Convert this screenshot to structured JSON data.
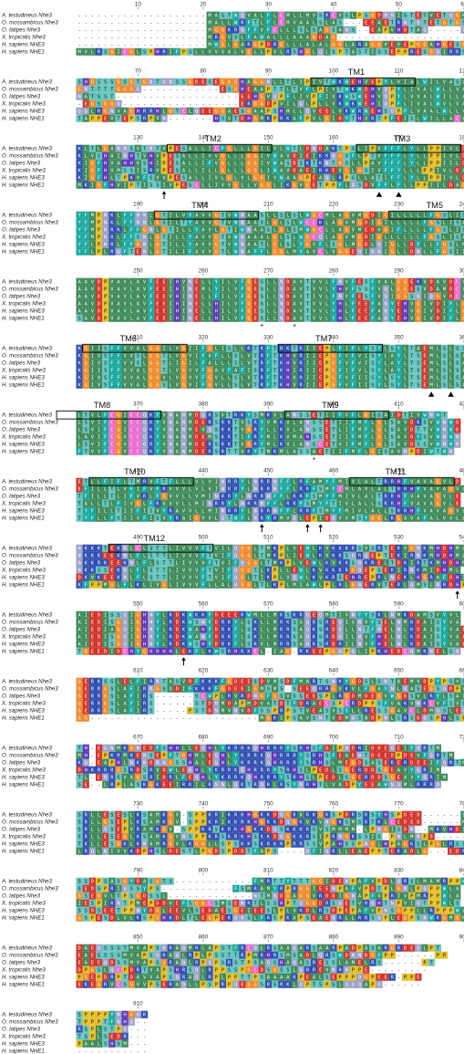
{
  "sequences": [
    "A. testudineus Nhe3",
    "O. mossambicus Nhe3",
    "O. latipes Nhe3",
    "X. tropicalis Nhe3",
    "H. sapiens NHE3",
    "H. sapiens NHE1"
  ],
  "blocks": [
    {
      "start": 1,
      "ticks": [
        10,
        20,
        30,
        40,
        50,
        60
      ],
      "rows": [
        "--------------------MASTWQVALFLCMLLMVSRCVSLPSGDNNISTETVETQGMRSS",
        "--------------------MALLWRFTLFLCMVAALSLAS---EEAETRNTQTETGTGSS",
        "--------------------MGGKRQFFVFCLLLSLSAGSANS--EAPVHDTAQ-----QS",
        "--------------------MRGVSLFAWALLLAAAGDAG---------------------",
        "--------------------MWGLGARGPDRGLLLALALGGLARAGGVEVEPGGAHGESGG",
        "MVLRSGICGLSPHRIFPSLLVVVALVGLLPVLRSHGLQLSPTASTISSEPPRESGQIRRSGDV"
      ]
    },
    {
      "start": 61,
      "ticks": [
        70,
        80,
        90,
        100,
        110,
        120
      ],
      "rows": [
        "SHGSSSGSGTGNTQNSSGDESEGGGHAGGNLLTLIPIVTWKWEHVEPYLVIALWILVASL",
        "GNTTTTGGGQ------------ESGHEAAPTTLTVFLPIVTWKWDHVQPYLIVALWLLVASL",
        "NATSST-------------------EEHGVQPFLIVPFIVKWSWEHVQPYLVVALWILLASL",
        "-EGSGGQ------------------ERGGDPVILQLPLLVKWKWEHIQPFLIVALWVLVASL",
        "QQLRGNVAGHRRHLGTCLQEEGGAESGAAPSHMLLQVEELVKWRWEHSQPFLVAALWLLVASL",
        "TAPPEVTEPSRPVN-------HSVTDHGMKPRKAFPVLGIDYTHVRTPFEISLWILLACL"
      ]
    },
    {
      "start": 121,
      "ticks": [
        130,
        140,
        150,
        160,
        170,
        180
      ],
      "rows": [
        "KLTLGANNSVTNTVPESALLICFGLLLGILVLWTLDNDAKTPSLIPVFFFLYLLPPIVLDAG",
        "KLVSHAINHTVHVPESALLIVVGLLLGGIVWAVDIEIKKNGSFLPTVFFFLYLLPPIVLDAG",
        "KIGFHVAHHVSHIPESALLIFVGLLLGGIVWASDSKTKNTGSLLPAVFFFLYLLPPIILDAG",
        "KIGFHVMSSISRVPESALLILLGLLLGGLIWAVDAEIRKEVGLGSIVFFYLLLPPIVLDAG",
        "KIGFHLTPKVFSVVPESALLIVLGLVLGGIVWAAGPEAQLRPSLLATIFFLYLLPPIVLDAG",
        "MKIGFHVIPTISSIVPESCLLIVVGLLVGGLIKGVGETPPFLQSDVFFLFLLPPIILDAG"
      ]
    },
    {
      "start": 181,
      "ticks": [
        190,
        200,
        210,
        220,
        230,
        240
      ],
      "rows": [
        "YFMPNKLFFNNLGTILVYAVVGTVWNAASLLSLSLWGCMLAGVMGDIGILLLLLFGSLISAV",
        "YFMPNKLFFNNLGSILTYAVVGTVWNAASLGLSLWCCKLAGVMGDIGILLLLLFGSLISAV",
        "YFMPNRKLFFGNLGTILLYAVLGTIWNAASLGLSMWGCLLAGVMEDVGIFLLLLFGSLISAV",
        "YFMPNRLFFSNLGTILLYAVVGTVWNAAALGLSLWGCQLAGVMGDIGLLLLLLFGSLISAV",
        "YFLPNRLFFGNLGTILLYAVVGTVWNAATLGLSLYGVFLSGLMGDLQIGLLDFLLFGSLMAAV",
        "YFLPLRQFTENLGTILIFAVVGTLWNAFFLGGLMYAVCLVGGEQINNIGLLDNLLFGSIISAV"
      ]
    },
    {
      "start": 241,
      "ticks": [
        250,
        260,
        270,
        280,
        290,
        300
      ],
      "rows": [
        "AAVDPVAVLAVFEEIHVNELLYILVFGESLLNDAVTVVLFNVFESFVALGGEKVDAVDCV",
        "AAVDPVAVLAVFEEIHINEMLYILVFGESLLNDAVTVVLYHVFSSFVQLGGESVDAMDCV",
        "AAVDPVAVLAVFEEVHINELLFILVFGESLLNDAVTIVLFNVFESFVQIGGSNIQGVDCV",
        "AAVDPVAVLAVFEEIHINELLHILVFGESLLNDAVTVVLYHLFEEFANYEHVGIVDIFLGF",
        "AAVDPVAVLAVFEEIHINELLHILVFGESLLNDAVTVVLYHLFEEFANYEHVGIVDIFLGF",
        "SAVDPVAVLAVFEEIHINELLHILVFGESLLNDAVTVVLYHLFEEFANYEHVGIVDIFLGF"
      ]
    },
    {
      "start": 301,
      "ticks": [
        310,
        320,
        330,
        340,
        350,
        360
      ],
      "rows": [
        "KGIISFFVVALGGILVGIIFGLISLLRTKFTRKTRIIEPLFIFLYSYLSYLTAEMLSLSSI",
        "KGIVSFFVVSLGGTLVGVIFAFLLSLVTRFTKHVRIIEPGFVFVISYLAYLTSEMLSLSAI",
        "KGIVSFFVVSLGGTLIGILFALLLSLVTRFTKHVRIIEPGFVFVISYLAYLTSEMLSLSAI",
        "KGIISFFVVALGGTLVGVVFGAVFAFISRFTKHIRIIEPGFIFVLSYLAYLTSEMLSLSAI",
        "KGIVSFFVVALGGVLVGVVFGVLLSLVTRFTKHVRIIEPGFVFIISYLSYLTSEMLSLSAI",
        "KGIVSFFVVALGGSLVGVIFGVLLSLVTRFTKHVRIIEPGFVFIISYLSYLTSEMLSLSAI"
      ]
    },
    {
      "start": 361,
      "ticks": [
        370,
        380,
        390,
        400,
        410,
        420
      ],
      "rows": [
        "LTVLFCGICCQKYVNANMDQRSVTRKYSMKVLANSSETIIFVFLGISAIDTIVWNWT",
        "LSVIFCGVCCQKYVNANMDERSRKTVSRYVMKVLANSSETIIFMFLGLSAVDRSVWNWD",
        "LSVIFCGICCQKYVNANMEVQSKKTVGRYLLKVLANSSETLIFMFLGLSAVDTTVWNWD",
        "LAVIFCGVCCQKYVNANMDEMSKKTIFRYMLKVMAHSSETIIFMFLGLSAVDYSVWNWN",
        "LSVIFCGVCCQRYVNANMDERSRKTVGRYMLKVLANSCETVIFMFLGLSAVDSSVWNWN",
        "FTVVFCGVCCQKYVNANMDEKSRTTVKYTMKMLASSAETIIFMFLGISAVNPDIWTWN"
      ]
    },
    {
      "start": 421,
      "ticks": [
        430,
        440,
        450,
        460,
        470,
        480
      ],
      "rows": [
        "ETLLFIFLTMRVFTFLLLVLVINRRYLNRRNFFLRFAMYFMIVLALTRRHFVAVAGVLD",
        "EFILLTLVFIFVFRVVVLVLVINRRYLNRRNFFLRRFSMYCMLAVLALTRRHFVAVAGVLE",
        "TFILLTLIFVRLFGVVLLVMINRRYLNRRNFFLRRFSMYFMIVLALTRRHFVAVAGVLE",
        "TALLTLFIVGLFRVVVLLMINRRYLNRRNFFLRRFSMYFTIVLALLSRRHFVAVAGVLE",
        "TYFILLTIIFISVYRAVVLLMINRRYLNRRNFFLRRFSMYFMIVLALLSRRHFVAVAGVLD",
        "TYFLLFSIIVFISVYRAIGVVLQTWFLNRYRMVQLEPIDQVVMSYGGLRGAVAFALVVLLD"
      ]
    },
    {
      "start": 481,
      "ticks": [
        490,
        500,
        510,
        520,
        530,
        540
      ],
      "rows": [
        "NKKKTEKNLCLSTTLIVVVFTVILQGGLTMKPLVEWLKVKKKRSVSRTEKVGNKMHDHMLI",
        "NKKKEEKNLFLSTTLIVVVFTVIFQGGLTMKPLIEWLKVKKSQRQEPTEKIRNKMHDHML",
        "NKKRKEEKNLFLSTTLIVVVFTVIFQGGLTMKPLVEWLKVKKSQKRELTDKIRTKMHDHML",
        "NKKSSEKNLFLSTTLIVVVFTVIFQGGTLKPLLEWLKVKKKRGQEPSEKIRNKMIDHML",
        "DKVKEEKNLFLSTTLIVVVFTVIFQGLTIKPLVQWLKVKRSEHREPRLNEKLHGRAFDHILL",
        "KFPPMGLFLKLIVGLIVVVFLLALQGGLTLKPLMIAWLPLRLGNERVTERLQMSLNRDHPH"
      ]
    },
    {
      "start": 541,
      "ticks": [
        550,
        560,
        570,
        580,
        590,
        600
      ],
      "rows": [
        "AIEDISSQIGHNYLRDKWKKFDEEEKWMLLMKSKRQEQMTIVNFYSKLNMKDAMSVYVL",
        "AIEDISGQIGHNYLRDKWSNFDRKYLSKLLMRKSAQRSREQIVNVFSELNMKDAISYVA",
        "AIEDIAGQIGHNYLRDKWAHFDRKFLSKLLMRRSAQKSRDQLLNTFNELNLKDAISYVAE",
        "AIEDISGQIGHNYLRDKWANFDRKFLSKLLMRRSAQKSRDQILNVFHELNLKDAISYVAE",
        "AIEDISGQIGHNYLRDKWSHFDRKFLSRVLMRRSAQKSRDRILNVFHELNLKDAISYVAE",
        "TGEEDIDCHYGHHHHLEKFLKWSRHKKCL-IAG-RKEEPGQPQLIPKHEDCNMKNELSN"
      ]
    },
    {
      "start": 601,
      "ticks": [
        610,
        620,
        630,
        640,
        650,
        660
      ],
      "rows": [
        "GERKSSLELFIRNTASVDFKKKFGDEESDVMSDFMARTSNKYGDSLSNTAEMVDPYPSVSLE",
        "GERRGSLAFIRNGSVDIFKKKFGDEEIGMSMS-SEEQRRGVKVLFGAYNLQASEGSQDPVEG",
        "GERRGSLAFIRS------SCWPLRVRDNGFGSVSSEESPLRGDMDEGVWGDSVLRYLSAIDS",
        "GERRGSLAFIRS------STDNMDAPMDVATDTFDRAECSPCRDPPSFVAKVNKCVFSVSLE",
        "GERRGSLAFIRS-----PSTDNMVNVDFSSPRPSTVEASVSYLLRESSGAVCLDMQSLEQ",
        "GG--------------------------MGKIPSAVSNTVDMQSADPNLSRSDQSPHLSPL"
      ]
    },
    {
      "start": 661,
      "ticks": [
        670,
        680,
        690,
        700,
        710,
        720
      ],
      "rows": [
        "TH-EQNMKGNEDFSHHLLEQHLYKRRKQHRRRYSRHSFDIPNDRIDDEQEIFQRTM",
        "MH-EPKRMRENSEPFTGHMLEQHLYKRRKQHRRRYSRHSFEAENTDEEDPDEVFQRTM",
        "KQ-EAPHLNKNDNNGSSHALEQHLYKRRKQHRRRYSRHSLMEGDSASERERDEEIFQRTM",
        "DHKRRRGSRDSRVDWLEQHLYKRRKQHRRRYSRHSLPEDLSGERDDSGEAVYQRIM",
        "TL-EQRSVAGSRIDRLFEQHLYKRRKQHRRRYSRHSLPEDLSGERDDSGEAVYQRIM",
        "SE--LRPLASKGKEEIRKILRNNLQKTRQRLRSYNRHTLVADPYEEAWNQMLRRRQ"
      ]
    },
    {
      "start": 721,
      "ticks": [
        730,
        740,
        750,
        760,
        770,
        780
      ],
      "rows": [
        "SRLLESESLKSAMKGV-SPPKRIKRKHGKKDQGKVRKGKSPDRSRSYHSPDED------LE",
        "SRLLGSEPLKSAMKGV-SPPKRIKKRKHGKKDQGKVKVNGKSMSKTKLCEDED------MSKLNE",
        "SRLLQSEPVRAMKGV-SPPKRSKRKHGKKDQSKKKRSVSMMMM-LPNGISDN--MKVHDIEA",
        "SRLLESEGLKSAMKGVNSPPKRSKRKHSKKDQGKKRSIPRNGKSSIS-PNLMNPD-----LE",
        "TKLLESGKLKNAMRGVLKGGLLSPSKKSKRKRPRRSSVPAHSSPNGLHPAGKSLPGLRSSDEK",
        "LRQLNIVVKDPHSLDESTLPGDSPDDTFAPS----QFIQRLLEAEPPTEKADLG---EDR"
      ]
    },
    {
      "start": 781,
      "ticks": [
        790,
        800,
        810,
        820,
        830,
        840
      ],
      "rows": [
        "SSDPSASGYDASGTS------------FMRTTYTTTGGIDENPAFVPDLQRSLMAMRPPWLA",
        "SEDSPRIQSSYPS-----------FSMRAMYRPRGGIEENPAFVPDTPLGNLPQPPWLA",
        "GSEGVLTPSGDSSL-------------NTMQDGAGGVRDDIGNAPFVPRIVPMRPPWLA",
        "IESPIRNTPMEPDDVEFSGGCSMSENRTLSSHPTQGGDRSQETVRQHTNPVIQTPPWLS",
        "SSDSEETPPNYDGLEEVLSEDAESGEIEESLPLVKDLRSDPEPAFVPNSGPPLLRPPPWLS",
        "GSPESDLVLKSPGHKDLTLEGPEKQNSLFRSPKAPSEAEQRLLRRSQPLEGPSNWKGMGMSE"
      ]
    },
    {
      "start": 841,
      "ticks": [
        850,
        860,
        870,
        880,
        890,
        900
      ],
      "rows": [
        "DAEQSSSTMVAPSQRAQMRLAPSTFRCQLRSAAQARSAARPADPASARGRDEQLPT",
        "EAESSSSMVAPSQRAQLRPLPSSTTRPMRHRSMSADLQRSWDNNDGFPP------PP",
        "EAEEQDSSMVAPSGRAQLRPQPSRSTPSAQSHAQASRESSLAMELRS------PT",
        "DPGSLQCPDRTVAPSHRSQLRPPSSPGCDSGSSLQRREVNRNPPE---------",
        "PGEPDRPTDAVVAPSQRAQLRPLPPTTPSAAAAKPEALSEPPPQGPEER-PPE",
        "EKEGRVCSGVVPSERAQLLPSPRPQEGGSRSRKLQPTSPSLQQQAPQ------"
      ]
    },
    {
      "start": 901,
      "ticks": [
        910
      ],
      "rows": [
        "SPPPPYNHGQK",
        "TPPPTFNHQ--",
        "RSPLSTPQ---",
        "TSPLSEDR---",
        "PAALSHSM---",
        "-----------"
      ]
    }
  ],
  "tm_labels": [
    {
      "block": 1,
      "col": 43,
      "text": "TM1"
    },
    {
      "block": 2,
      "col": 21,
      "text": "TM2"
    },
    {
      "block": 2,
      "col": 50,
      "text": "TM3"
    },
    {
      "block": 3,
      "col": 19,
      "text": "TM4"
    },
    {
      "block": 3,
      "col": 55,
      "text": "TM5"
    },
    {
      "block": 5,
      "col": 8,
      "text": "TM6"
    },
    {
      "block": 5,
      "col": 38,
      "text": "TM7"
    },
    {
      "block": 6,
      "col": 4,
      "text": "TM8"
    },
    {
      "block": 6,
      "col": 39,
      "text": "TM9"
    },
    {
      "block": 7,
      "col": 9,
      "text": "TM10"
    },
    {
      "block": 7,
      "col": 49,
      "text": "TM11"
    },
    {
      "block": 8,
      "col": 12,
      "text": "TM12"
    }
  ],
  "asterisks": [
    {
      "block": 4,
      "cols": [
        28,
        33
      ]
    },
    {
      "block": 6,
      "cols": [
        36
      ]
    }
  ],
  "triangles": [
    {
      "block": 2,
      "cols": [
        46,
        49
      ]
    },
    {
      "block": 5,
      "cols": [
        54,
        57,
        60
      ]
    }
  ],
  "arrows": [
    {
      "block": 2,
      "cols": [
        13
      ]
    },
    {
      "block": 7,
      "cols": [
        28,
        35,
        37
      ]
    },
    {
      "block": 8,
      "cols": [
        58
      ]
    },
    {
      "block": 9,
      "cols": [
        16
      ]
    }
  ],
  "colors": {
    "hydrophobic": "#3f8a5a",
    "hydrophobic_dark": "#1f6e44",
    "aromatic": "#1aa8a0",
    "basic": "#2f4fb0",
    "acidic": "#d2342c",
    "amide": "#9aa1c8",
    "hydroxyl": "#68c6c0",
    "glycine": "#ee8a2a",
    "proline": "#e7c12d",
    "cysteine": "#ec6bd0",
    "histidine": "#5e36b8",
    "text_light": "#ffffff",
    "text_dark": "#1a1a1a"
  }
}
